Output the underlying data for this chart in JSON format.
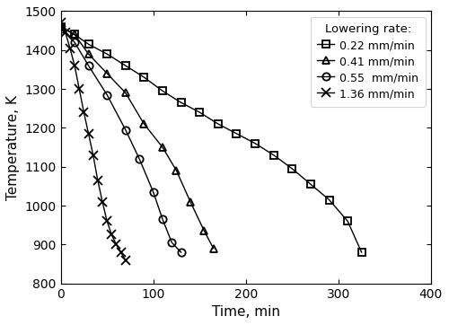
{
  "xlabel": "Time, min",
  "ylabel": "Temperature, K",
  "xlim": [
    0,
    400
  ],
  "ylim": [
    800,
    1500
  ],
  "xticks": [
    0,
    100,
    200,
    300,
    400
  ],
  "yticks": [
    800,
    900,
    1000,
    1100,
    1200,
    1300,
    1400,
    1500
  ],
  "legend_title": "Lowering rate:",
  "series": [
    {
      "label": "0.22 mm/min",
      "marker": "s",
      "markersize": 6,
      "linewidth": 1.0,
      "x": [
        0,
        15,
        30,
        50,
        70,
        90,
        110,
        130,
        150,
        170,
        190,
        210,
        230,
        250,
        270,
        290,
        310,
        325
      ],
      "y": [
        1460,
        1440,
        1415,
        1390,
        1360,
        1330,
        1295,
        1265,
        1240,
        1210,
        1185,
        1160,
        1130,
        1095,
        1055,
        1015,
        960,
        880
      ]
    },
    {
      "label": "0.41 mm/min",
      "marker": "^",
      "markersize": 6,
      "linewidth": 1.0,
      "x": [
        0,
        15,
        30,
        50,
        70,
        90,
        110,
        125,
        140,
        155,
        165
      ],
      "y": [
        1460,
        1440,
        1390,
        1340,
        1290,
        1210,
        1150,
        1090,
        1010,
        935,
        890
      ]
    },
    {
      "label": "0.55  mm/min",
      "marker": "o",
      "markersize": 6,
      "linewidth": 1.0,
      "x": [
        0,
        15,
        30,
        50,
        70,
        85,
        100,
        110,
        120,
        130
      ],
      "y": [
        1455,
        1420,
        1360,
        1285,
        1195,
        1120,
        1035,
        965,
        905,
        880
      ]
    },
    {
      "label": "1.36 mm/min",
      "marker": "x",
      "markersize": 7,
      "linewidth": 1.0,
      "x": [
        0,
        5,
        10,
        15,
        20,
        25,
        30,
        35,
        40,
        45,
        50,
        55,
        60,
        65,
        70
      ],
      "y": [
        1470,
        1445,
        1405,
        1360,
        1300,
        1240,
        1185,
        1130,
        1065,
        1010,
        960,
        925,
        900,
        880,
        860
      ]
    }
  ]
}
